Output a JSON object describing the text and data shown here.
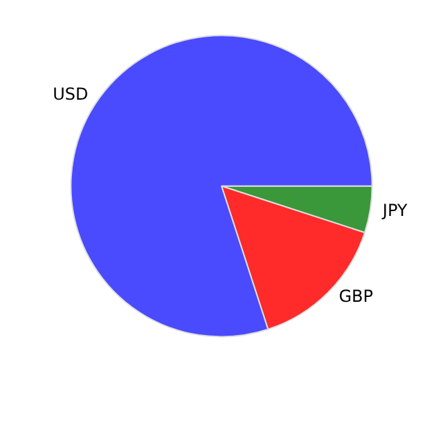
{
  "chart_data": {
    "type": "pie",
    "categories": [
      "JPY",
      "GBP",
      "USD"
    ],
    "values": [
      5,
      15,
      80
    ],
    "colors": [
      "#3a973a",
      "#ff2a2a",
      "#4a4aff"
    ],
    "legend": false
  }
}
